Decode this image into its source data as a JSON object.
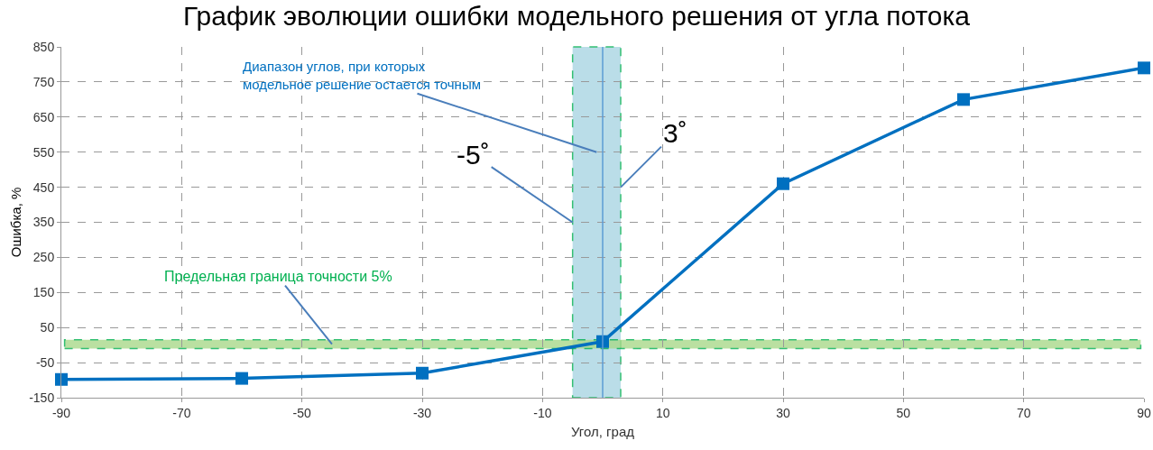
{
  "chart_data": {
    "type": "line",
    "title": "График эволюции ошибки модельного решения от угла потока",
    "xlabel": "Угол, град",
    "ylabel": "Ошибка, %",
    "x": [
      -90,
      -60,
      -30,
      0,
      30,
      60,
      90
    ],
    "series": [
      {
        "color": "#0070c0",
        "values": [
          -98,
          -95,
          -80,
          10,
          460,
          700,
          790
        ]
      }
    ],
    "xlim": [
      -90,
      90
    ],
    "xticks": [
      -90,
      -70,
      -50,
      -30,
      -10,
      10,
      30,
      50,
      70,
      90
    ],
    "ylim": [
      -150,
      850
    ],
    "yticks": [
      -150,
      -50,
      50,
      150,
      250,
      350,
      450,
      550,
      650,
      750,
      850
    ],
    "grid": true,
    "marker": "square",
    "line_style": "solid",
    "ref_lines": [
      {
        "axis": "x",
        "value": 0,
        "color": "#5b9bd5"
      }
    ],
    "bands": [
      {
        "axis": "x",
        "from": -5,
        "to": 3,
        "color": "#a9d5e3",
        "label": "Диапазон углов, при которых\nмодельное решение остается точным"
      },
      {
        "axis": "y",
        "from": -10,
        "to": 15,
        "color": "#a9d98a",
        "label": "Предельная граница точности 5%"
      }
    ],
    "annotations": [
      {
        "text": "-5˚",
        "x": -5,
        "y": 350
      },
      {
        "text": "3˚",
        "x": 3,
        "y": 450
      }
    ]
  }
}
